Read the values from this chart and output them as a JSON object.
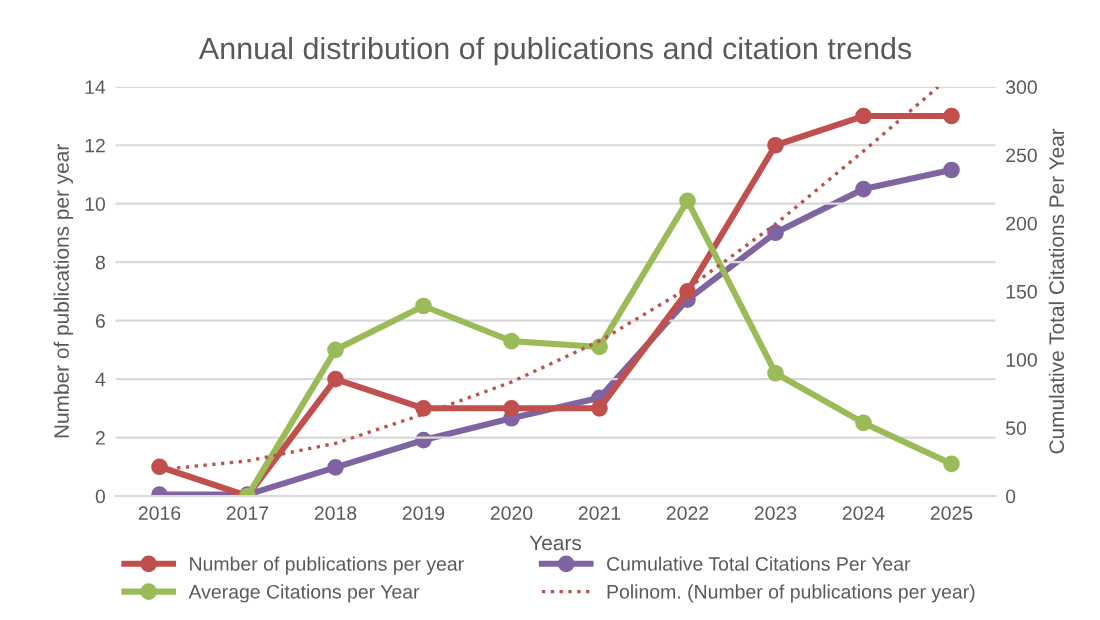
{
  "chart_data": {
    "type": "line",
    "title": "Annual distribution of publications and citation trends",
    "xlabel": "Years",
    "ylabel": "Number of publications per year",
    "y2label": "Cumulative Total Citations Per Year",
    "x": [
      2016,
      2017,
      2018,
      2019,
      2020,
      2021,
      2022,
      2023,
      2024,
      2025
    ],
    "xlim": [
      2015.5,
      2025.5
    ],
    "xticks": [
      2016,
      2017,
      2018,
      2019,
      2020,
      2021,
      2022,
      2023,
      2024,
      2025
    ],
    "ylim": [
      0,
      14
    ],
    "yticks": [
      0,
      2,
      4,
      6,
      8,
      10,
      12,
      14
    ],
    "y2lim": [
      0,
      300
    ],
    "y2ticks": [
      0,
      50,
      100,
      150,
      200,
      250,
      300
    ],
    "grid": "y",
    "legend": "bottom",
    "marker": "circle",
    "series": [
      {
        "name": "Number of publications per year",
        "color": "#c0504d",
        "values": [
          1,
          0,
          4,
          3,
          3,
          3,
          7,
          12,
          13,
          13
        ]
      },
      {
        "name": "Average Citations per Year",
        "color": "#9bbb59",
        "values": [
          null,
          0,
          5,
          6.5,
          5.3,
          5.1,
          10.1,
          4.2,
          2.5,
          1.1
        ]
      },
      {
        "name": "Cumulative Total Citations Per Year",
        "color": "#8064a2",
        "axis": "y2",
        "values": [
          1,
          1,
          21,
          41,
          57,
          72,
          144,
          193,
          225,
          239
        ]
      },
      {
        "name": "Polinom. (Number of publications per year)",
        "color": "#c0504d",
        "marker": "none",
        "line_style": "dotted",
        "x": [
          2016,
          2017,
          2018,
          2019,
          2020,
          2021,
          2022,
          2023,
          2024,
          2024.85
        ],
        "values": [
          0.9,
          1.2,
          1.8,
          2.8,
          3.9,
          5.3,
          7.1,
          9.3,
          11.8,
          14
        ]
      }
    ]
  }
}
